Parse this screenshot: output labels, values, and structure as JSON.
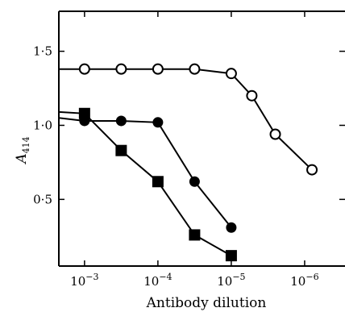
{
  "chart_data": {
    "type": "line",
    "xlabel": "Antibody dilution",
    "ylabel_main": "A",
    "ylabel_sub": "414",
    "x_scale": "log, reversed (higher dilution to the right)",
    "xlim_log10": [
      -2.65,
      -6.55
    ],
    "ylim": [
      0.05,
      1.77
    ],
    "grid": false,
    "legend": "none",
    "x_ticks": [
      {
        "value": -3,
        "base": "10",
        "exp": "−3"
      },
      {
        "value": -4,
        "base": "10",
        "exp": "−4"
      },
      {
        "value": -5,
        "base": "10",
        "exp": "−5"
      },
      {
        "value": -6,
        "base": "10",
        "exp": "−6"
      }
    ],
    "y_ticks": [
      {
        "value": 0.5,
        "label": "0·5"
      },
      {
        "value": 1.0,
        "label": "1·0"
      },
      {
        "value": 1.5,
        "label": "1·5"
      }
    ],
    "series": [
      {
        "marker": "open-circle",
        "line_start": [
          -2.65,
          1.38
        ],
        "points": [
          [
            -3.0,
            1.38
          ],
          [
            -3.5,
            1.38
          ],
          [
            -4.0,
            1.38
          ],
          [
            -4.5,
            1.38
          ],
          [
            -5.0,
            1.35
          ],
          [
            -5.28,
            1.2
          ],
          [
            -5.6,
            0.94
          ],
          [
            -6.1,
            0.7
          ]
        ]
      },
      {
        "marker": "filled-circle",
        "line_start": [
          -2.65,
          1.05
        ],
        "points": [
          [
            -3.0,
            1.03
          ],
          [
            -3.5,
            1.03
          ],
          [
            -4.0,
            1.02
          ],
          [
            -4.5,
            0.62
          ],
          [
            -5.0,
            0.31
          ]
        ]
      },
      {
        "marker": "filled-square",
        "line_start": [
          -2.65,
          1.09
        ],
        "points": [
          [
            -3.0,
            1.08
          ],
          [
            -3.5,
            0.83
          ],
          [
            -4.0,
            0.62
          ],
          [
            -4.5,
            0.26
          ],
          [
            -5.0,
            0.12
          ]
        ]
      }
    ]
  }
}
